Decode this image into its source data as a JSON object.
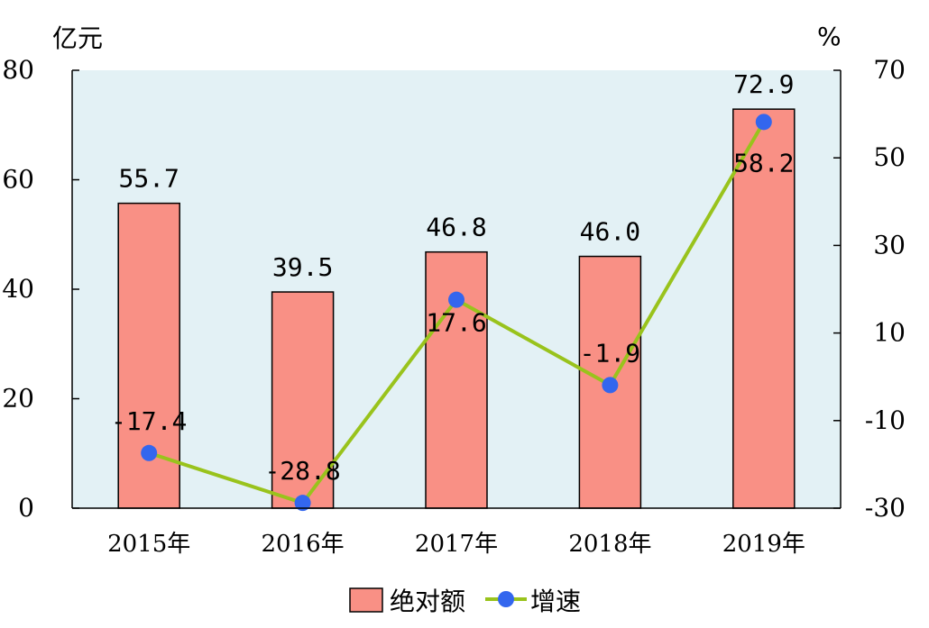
{
  "chart_data": {
    "type": "bar",
    "categories": [
      "2015年",
      "2016年",
      "2017年",
      "2018年",
      "2019年"
    ],
    "series": [
      {
        "name": "绝对额",
        "type": "bar",
        "axis": "left",
        "values": [
          55.7,
          39.5,
          46.8,
          46.0,
          72.9
        ],
        "labels": [
          "55.7",
          "39.5",
          "46.8",
          "46.0",
          "72.9"
        ]
      },
      {
        "name": "增速",
        "type": "line",
        "axis": "right",
        "values": [
          -17.4,
          -28.8,
          17.6,
          -1.9,
          58.2
        ],
        "labels": [
          "-17.4",
          "-28.8",
          "17.6",
          "-1.9",
          "58.2"
        ]
      }
    ],
    "left_axis": {
      "unit": "亿元",
      "ylim": [
        0,
        80
      ],
      "ticks": [
        "0",
        "20",
        "40",
        "60",
        "80"
      ]
    },
    "right_axis": {
      "unit": "%",
      "ylim": [
        -30,
        70
      ],
      "ticks": [
        "-30",
        "-10",
        "10",
        "30",
        "50",
        "70"
      ]
    },
    "grid": false,
    "legend": "bottom-center",
    "colors": {
      "plot_bg": "#e3f1f5",
      "bar_fill": "#f99085",
      "bar_stroke": "#000000",
      "line": "#99c31c",
      "marker": "#3366ee"
    }
  }
}
